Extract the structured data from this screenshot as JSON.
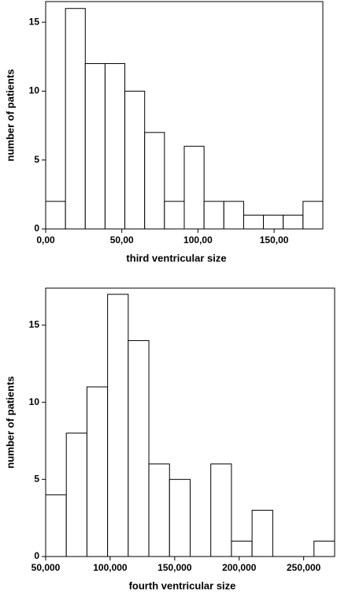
{
  "chart_data": [
    {
      "type": "histogram",
      "x_label": "third ventricular size",
      "y_label": "number of patients",
      "bins": [
        0,
        13,
        26,
        39,
        52,
        65,
        78,
        91,
        104,
        117,
        130,
        143,
        156,
        169,
        182
      ],
      "values": [
        2,
        16,
        12,
        12,
        10,
        7,
        2,
        6,
        2,
        2,
        1,
        1,
        1,
        2
      ],
      "color": "#ffffff",
      "xlim": [
        0,
        182
      ],
      "ylim": [
        0,
        16.5
      ],
      "xticks": [
        {
          "value": 0,
          "label": "0,00"
        },
        {
          "value": 50,
          "label": "50,00"
        },
        {
          "value": 100,
          "label": "100,00"
        },
        {
          "value": 150,
          "label": "150,00"
        }
      ],
      "yticks": [
        0,
        5,
        10,
        15
      ]
    },
    {
      "type": "histogram",
      "x_label": "fourth ventricular size",
      "y_label": "number of patients",
      "bins": [
        50,
        66,
        82,
        98,
        114,
        130,
        146,
        162,
        178,
        194,
        210,
        226,
        242,
        258,
        274
      ],
      "values": [
        4,
        8,
        11,
        17,
        14,
        6,
        5,
        0,
        6,
        1,
        3,
        0,
        0,
        1
      ],
      "color": "#ffffff",
      "xlim": [
        50,
        274
      ],
      "ylim": [
        0,
        17.4
      ],
      "xticks": [
        {
          "value": 50,
          "label": "50,000"
        },
        {
          "value": 100,
          "label": "100,000"
        },
        {
          "value": 150,
          "label": "150,000"
        },
        {
          "value": 200,
          "label": "200,000"
        },
        {
          "value": 250,
          "label": "250,000"
        }
      ],
      "yticks": [
        0,
        5,
        10,
        15
      ]
    }
  ]
}
